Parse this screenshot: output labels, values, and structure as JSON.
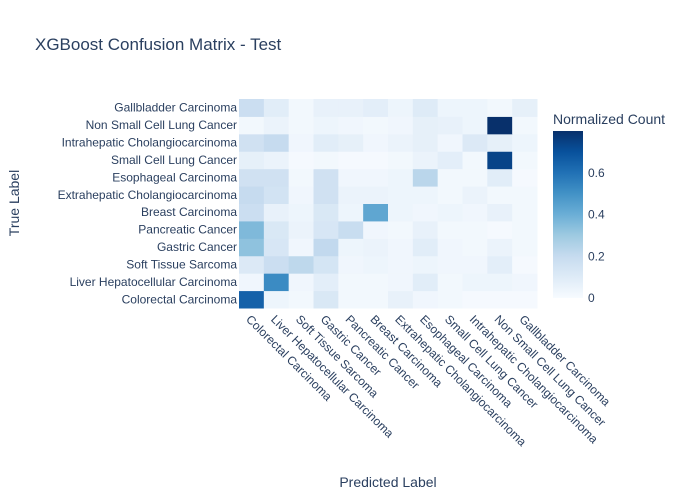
{
  "chart_data": {
    "type": "heatmap",
    "title": "XGBoost Confusion Matrix - Test",
    "xlabel": "Predicted Label",
    "ylabel": "True Label",
    "x_categories": [
      "Colorectal Carcinoma",
      "Liver Hepatocellular Carcinoma",
      "Soft Tissue Sarcoma",
      "Gastric Cancer",
      "Pancreatic Cancer",
      "Breast Carcinoma",
      "Extrahepatic Cholangiocarcinoma",
      "Esophageal Carcinoma",
      "Small Cell Lung Cancer",
      "Intrahepatic Cholangiocarcinoma",
      "Non Small Cell Lung Cancer",
      "Gallbladder Carcinoma"
    ],
    "y_categories": [
      "Colorectal Carcinoma",
      "Liver Hepatocellular Carcinoma",
      "Soft Tissue Sarcoma",
      "Gastric Cancer",
      "Pancreatic Cancer",
      "Breast Carcinoma",
      "Extrahepatic Cholangiocarcinoma",
      "Esophageal Carcinoma",
      "Small Cell Lung Cancer",
      "Intrahepatic Cholangiocarcinoma",
      "Non Small Cell Lung Cancer",
      "Gallbladder Carcinoma"
    ],
    "z": [
      [
        0.65,
        0.04,
        0.02,
        0.12,
        0.02,
        0.02,
        0.06,
        0.03,
        0.02,
        0.01,
        0.01,
        0.01
      ],
      [
        0.03,
        0.52,
        0.03,
        0.08,
        0.02,
        0.02,
        0.03,
        0.09,
        0.02,
        0.04,
        0.04,
        0.03
      ],
      [
        0.11,
        0.18,
        0.22,
        0.14,
        0.03,
        0.04,
        0.03,
        0.04,
        0.03,
        0.03,
        0.08,
        0.01
      ],
      [
        0.33,
        0.13,
        0.03,
        0.21,
        0.04,
        0.05,
        0.03,
        0.09,
        0.03,
        0.02,
        0.05,
        0.02
      ],
      [
        0.36,
        0.12,
        0.05,
        0.13,
        0.19,
        0.03,
        0.02,
        0.06,
        0.02,
        0.02,
        0.01,
        0.02
      ],
      [
        0.18,
        0.06,
        0.04,
        0.12,
        0.04,
        0.43,
        0.04,
        0.03,
        0.04,
        0.03,
        0.06,
        0.02
      ],
      [
        0.2,
        0.15,
        0.03,
        0.16,
        0.05,
        0.05,
        0.04,
        0.04,
        0.02,
        0.05,
        0.02,
        0.02
      ],
      [
        0.16,
        0.16,
        0.02,
        0.16,
        0.03,
        0.03,
        0.04,
        0.23,
        0.02,
        0.02,
        0.09,
        0.01
      ],
      [
        0.07,
        0.05,
        0.01,
        0.02,
        0.01,
        0.01,
        0.02,
        0.05,
        0.08,
        0.02,
        0.74,
        0.02
      ],
      [
        0.16,
        0.2,
        0.03,
        0.09,
        0.07,
        0.03,
        0.05,
        0.07,
        0.03,
        0.11,
        0.07,
        0.04
      ],
      [
        0.02,
        0.05,
        0.02,
        0.04,
        0.03,
        0.02,
        0.03,
        0.07,
        0.06,
        0.04,
        0.8,
        0.02
      ],
      [
        0.18,
        0.09,
        0.02,
        0.06,
        0.06,
        0.08,
        0.04,
        0.1,
        0.04,
        0.04,
        0.02,
        0.07
      ]
    ],
    "zmin": 0,
    "zmax": 0.8,
    "colorbar": {
      "title": "Normalized Count",
      "ticks": [
        0,
        0.2,
        0.4,
        0.6
      ],
      "tick_labels": [
        "0",
        "0.2",
        "0.4",
        "0.6"
      ]
    },
    "colorscale": [
      "#f7fbff",
      "#deebf7",
      "#c6dbef",
      "#9ecae1",
      "#6baed6",
      "#4292c6",
      "#2171b5",
      "#08519c",
      "#08306b"
    ],
    "grid": false
  }
}
